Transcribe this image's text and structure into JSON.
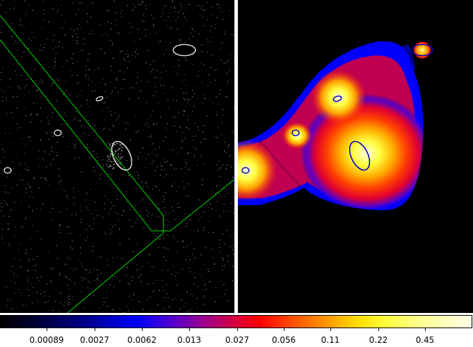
{
  "colors": {
    "region_contour_left": "#ffffff",
    "region_contour_right": "#0000cc",
    "boundary_line": "#00dd00",
    "divider": "#ffffff"
  },
  "colorbar": {
    "scale": "log",
    "palette": "heat: black-blue-red-yellow-white",
    "tick_labels": [
      "0.00089",
      "0.0027",
      "0.0062",
      "0.013",
      "0.027",
      "0.056",
      "0.11",
      "0.22",
      "0.45"
    ]
  }
}
